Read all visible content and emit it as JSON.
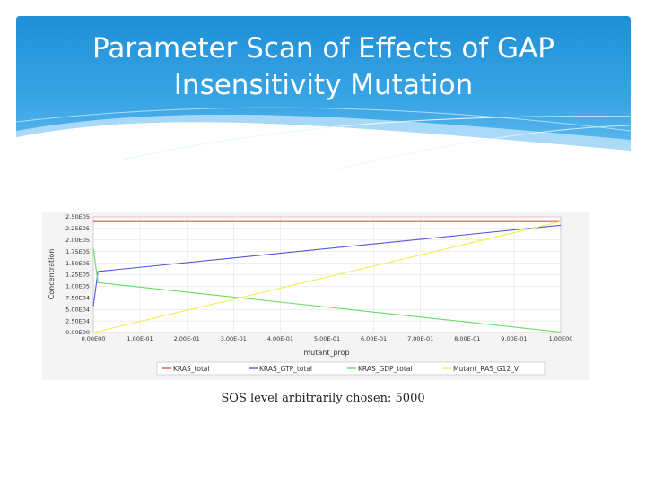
{
  "slide": {
    "title": "Parameter Scan of Effects of GAP Insensitivity Mutation",
    "caption": "SOS level arbitrarily chosen: 5000",
    "header_color": "#2b9be0"
  },
  "chart_data": {
    "type": "line",
    "xlabel": "mutant_prop",
    "ylabel": "Concentration",
    "xlim": [
      0,
      1
    ],
    "ylim": [
      0,
      250000
    ],
    "x_ticks": [
      "0.00E00",
      "1.00E-01",
      "2.00E-01",
      "3.00E-01",
      "4.00E-01",
      "5.00E-01",
      "6.00E-01",
      "7.00E-01",
      "8.00E-01",
      "9.00E-01",
      "1.00E00"
    ],
    "y_ticks": [
      "0.00E00",
      "2.50E04",
      "5.00E04",
      "7.50E04",
      "1.00E05",
      "1.25E05",
      "1.50E05",
      "1.75E05",
      "2.00E05",
      "2.25E05",
      "2.50E05"
    ],
    "grid": true,
    "legend_position": "bottom",
    "series": [
      {
        "name": "KRAS_total",
        "color": "#e05555",
        "x": [
          0,
          1
        ],
        "y": [
          240000,
          240000
        ]
      },
      {
        "name": "KRAS_GTP_total",
        "color": "#5555dd",
        "x": [
          0,
          0.01,
          1
        ],
        "y": [
          57000,
          132000,
          232000
        ]
      },
      {
        "name": "KRAS_GDP_total",
        "color": "#66dd66",
        "x": [
          0,
          0.01,
          1
        ],
        "y": [
          183000,
          108000,
          1000
        ]
      },
      {
        "name": "Mutant_RAS_G12_V",
        "color": "#eeee55",
        "x": [
          0,
          1
        ],
        "y": [
          0,
          240000
        ]
      }
    ]
  }
}
